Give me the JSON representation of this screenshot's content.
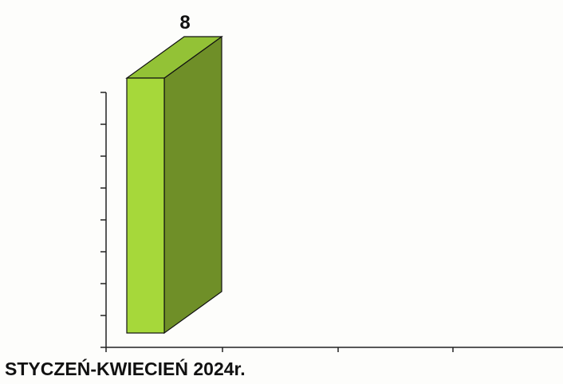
{
  "chart_data": {
    "type": "bar",
    "style": "3d",
    "categories": [
      "STYCZEŃ-KWIECIEŃ 2024r."
    ],
    "values": [
      8
    ],
    "data_labels": [
      "8"
    ],
    "ylim": [
      0,
      8
    ],
    "y_ticks": [
      0,
      1,
      2,
      3,
      4,
      5,
      6,
      7,
      8
    ],
    "show_y_tick_labels": false,
    "grid": false,
    "colors": {
      "bar_front": "#a6d83a",
      "bar_side": "#6f8f28",
      "bar_top": "#93c236",
      "outline": "#111111",
      "axis": "#222222"
    }
  }
}
